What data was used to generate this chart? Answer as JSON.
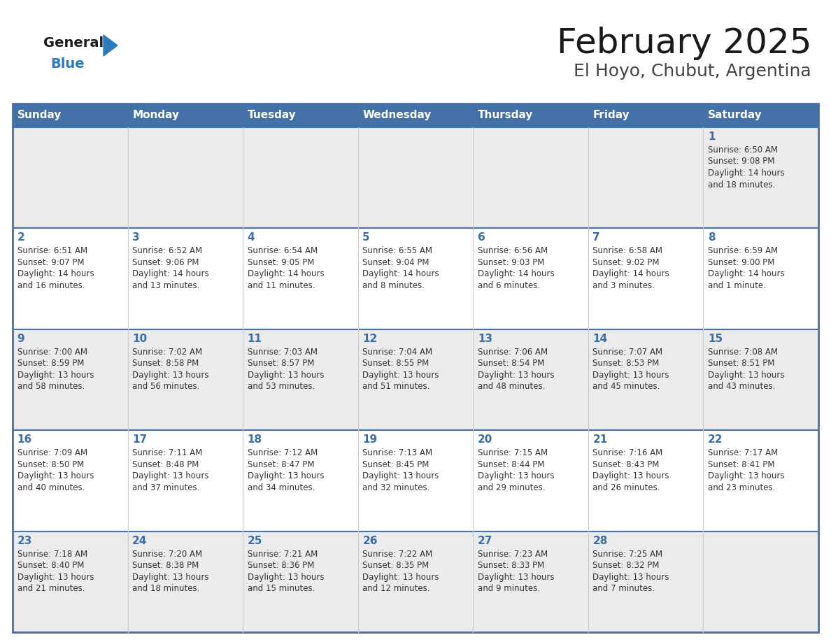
{
  "title": "February 2025",
  "subtitle": "El Hoyo, Chubut, Argentina",
  "days_of_week": [
    "Sunday",
    "Monday",
    "Tuesday",
    "Wednesday",
    "Thursday",
    "Friday",
    "Saturday"
  ],
  "header_bg_color": "#4472a8",
  "header_text_color": "#ffffff",
  "cell_bg_even": "#ebebeb",
  "cell_bg_odd": "#ffffff",
  "day_number_color": "#3a6ea8",
  "info_text_color": "#333333",
  "border_color": "#4472a8",
  "title_color": "#1a1a1a",
  "subtitle_color": "#444444",
  "general_color": "#1a1a1a",
  "blue_color": "#2a7abf",
  "calendar_data": [
    [
      null,
      null,
      null,
      null,
      null,
      null,
      {
        "day": "1",
        "sunrise": "6:50 AM",
        "sunset": "9:08 PM",
        "daylight": "14 hours",
        "daylight2": "and 18 minutes."
      }
    ],
    [
      {
        "day": "2",
        "sunrise": "6:51 AM",
        "sunset": "9:07 PM",
        "daylight": "14 hours",
        "daylight2": "and 16 minutes."
      },
      {
        "day": "3",
        "sunrise": "6:52 AM",
        "sunset": "9:06 PM",
        "daylight": "14 hours",
        "daylight2": "and 13 minutes."
      },
      {
        "day": "4",
        "sunrise": "6:54 AM",
        "sunset": "9:05 PM",
        "daylight": "14 hours",
        "daylight2": "and 11 minutes."
      },
      {
        "day": "5",
        "sunrise": "6:55 AM",
        "sunset": "9:04 PM",
        "daylight": "14 hours",
        "daylight2": "and 8 minutes."
      },
      {
        "day": "6",
        "sunrise": "6:56 AM",
        "sunset": "9:03 PM",
        "daylight": "14 hours",
        "daylight2": "and 6 minutes."
      },
      {
        "day": "7",
        "sunrise": "6:58 AM",
        "sunset": "9:02 PM",
        "daylight": "14 hours",
        "daylight2": "and 3 minutes."
      },
      {
        "day": "8",
        "sunrise": "6:59 AM",
        "sunset": "9:00 PM",
        "daylight": "14 hours",
        "daylight2": "and 1 minute."
      }
    ],
    [
      {
        "day": "9",
        "sunrise": "7:00 AM",
        "sunset": "8:59 PM",
        "daylight": "13 hours",
        "daylight2": "and 58 minutes."
      },
      {
        "day": "10",
        "sunrise": "7:02 AM",
        "sunset": "8:58 PM",
        "daylight": "13 hours",
        "daylight2": "and 56 minutes."
      },
      {
        "day": "11",
        "sunrise": "7:03 AM",
        "sunset": "8:57 PM",
        "daylight": "13 hours",
        "daylight2": "and 53 minutes."
      },
      {
        "day": "12",
        "sunrise": "7:04 AM",
        "sunset": "8:55 PM",
        "daylight": "13 hours",
        "daylight2": "and 51 minutes."
      },
      {
        "day": "13",
        "sunrise": "7:06 AM",
        "sunset": "8:54 PM",
        "daylight": "13 hours",
        "daylight2": "and 48 minutes."
      },
      {
        "day": "14",
        "sunrise": "7:07 AM",
        "sunset": "8:53 PM",
        "daylight": "13 hours",
        "daylight2": "and 45 minutes."
      },
      {
        "day": "15",
        "sunrise": "7:08 AM",
        "sunset": "8:51 PM",
        "daylight": "13 hours",
        "daylight2": "and 43 minutes."
      }
    ],
    [
      {
        "day": "16",
        "sunrise": "7:09 AM",
        "sunset": "8:50 PM",
        "daylight": "13 hours",
        "daylight2": "and 40 minutes."
      },
      {
        "day": "17",
        "sunrise": "7:11 AM",
        "sunset": "8:48 PM",
        "daylight": "13 hours",
        "daylight2": "and 37 minutes."
      },
      {
        "day": "18",
        "sunrise": "7:12 AM",
        "sunset": "8:47 PM",
        "daylight": "13 hours",
        "daylight2": "and 34 minutes."
      },
      {
        "day": "19",
        "sunrise": "7:13 AM",
        "sunset": "8:45 PM",
        "daylight": "13 hours",
        "daylight2": "and 32 minutes."
      },
      {
        "day": "20",
        "sunrise": "7:15 AM",
        "sunset": "8:44 PM",
        "daylight": "13 hours",
        "daylight2": "and 29 minutes."
      },
      {
        "day": "21",
        "sunrise": "7:16 AM",
        "sunset": "8:43 PM",
        "daylight": "13 hours",
        "daylight2": "and 26 minutes."
      },
      {
        "day": "22",
        "sunrise": "7:17 AM",
        "sunset": "8:41 PM",
        "daylight": "13 hours",
        "daylight2": "and 23 minutes."
      }
    ],
    [
      {
        "day": "23",
        "sunrise": "7:18 AM",
        "sunset": "8:40 PM",
        "daylight": "13 hours",
        "daylight2": "and 21 minutes."
      },
      {
        "day": "24",
        "sunrise": "7:20 AM",
        "sunset": "8:38 PM",
        "daylight": "13 hours",
        "daylight2": "and 18 minutes."
      },
      {
        "day": "25",
        "sunrise": "7:21 AM",
        "sunset": "8:36 PM",
        "daylight": "13 hours",
        "daylight2": "and 15 minutes."
      },
      {
        "day": "26",
        "sunrise": "7:22 AM",
        "sunset": "8:35 PM",
        "daylight": "13 hours",
        "daylight2": "and 12 minutes."
      },
      {
        "day": "27",
        "sunrise": "7:23 AM",
        "sunset": "8:33 PM",
        "daylight": "13 hours",
        "daylight2": "and 9 minutes."
      },
      {
        "day": "28",
        "sunrise": "7:25 AM",
        "sunset": "8:32 PM",
        "daylight": "13 hours",
        "daylight2": "and 7 minutes."
      },
      null
    ]
  ]
}
